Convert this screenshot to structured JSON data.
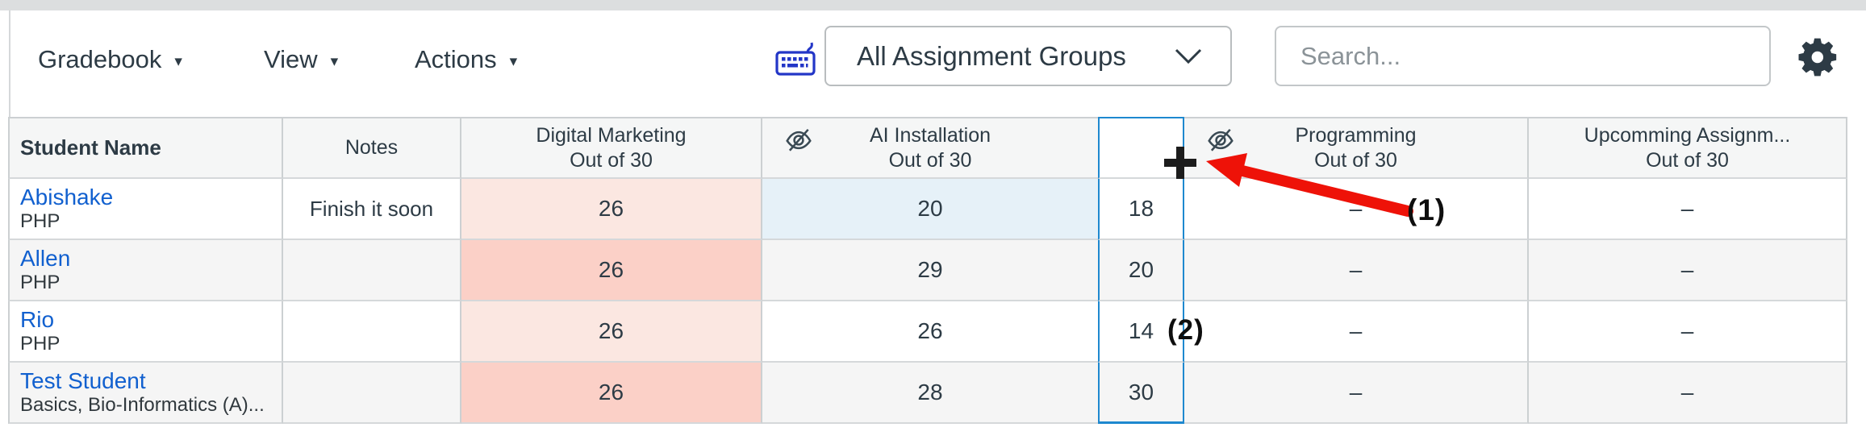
{
  "toolbar": {
    "menus": [
      {
        "label": "Gradebook"
      },
      {
        "label": "View"
      },
      {
        "label": "Actions"
      }
    ],
    "assignment_groups_dropdown": {
      "value": "All Assignment Groups"
    },
    "search": {
      "placeholder": "Search..."
    }
  },
  "icons": {
    "keyboard": "keyboard-shortcuts-icon",
    "gear": "settings-gear-icon",
    "hidden_eye": "hidden-eye-icon",
    "chevron": "chevron-down-icon",
    "plus": "add-column-plus-icon",
    "arrow": "annotation-arrow-icon"
  },
  "table": {
    "columns": [
      {
        "key": "student",
        "label": "Student Name",
        "type": "text"
      },
      {
        "key": "notes",
        "label": "Notes",
        "type": "text"
      },
      {
        "key": "digital_marketing",
        "title": "Digital Marketing",
        "subtitle": "Out of 30",
        "hidden_icon": false
      },
      {
        "key": "ai_installation",
        "title": "AI Installation",
        "subtitle": "Out of 30",
        "hidden_icon": true
      },
      {
        "key": "new_column",
        "title": "",
        "subtitle": "",
        "hidden_icon": false,
        "selected": true
      },
      {
        "key": "programming",
        "title": "Programming",
        "subtitle": "Out of 30",
        "hidden_icon": true
      },
      {
        "key": "upcoming",
        "title": "Upcomming Assignm...",
        "subtitle": "Out of 30",
        "hidden_icon": false
      }
    ],
    "rows": [
      {
        "student": {
          "name": "Abishake",
          "detail": "PHP"
        },
        "notes": "Finish it soon",
        "digital_marketing": "26",
        "ai_installation": "20",
        "new_column": "18",
        "programming": "–",
        "upcoming": "–",
        "highlights": {
          "digital_marketing": "pink_light",
          "ai_installation": "light_blue"
        }
      },
      {
        "student": {
          "name": "Allen",
          "detail": "PHP"
        },
        "notes": "",
        "digital_marketing": "26",
        "ai_installation": "29",
        "new_column": "20",
        "programming": "–",
        "upcoming": "–",
        "highlights": {
          "digital_marketing": "pink_dark"
        }
      },
      {
        "student": {
          "name": "Rio",
          "detail": "PHP"
        },
        "notes": "",
        "digital_marketing": "26",
        "ai_installation": "26",
        "new_column": "14",
        "programming": "–",
        "upcoming": "–",
        "highlights": {
          "digital_marketing": "pink_light"
        }
      },
      {
        "student": {
          "name": "Test Student",
          "detail": "Basics, Bio-Informatics (A)..."
        },
        "notes": "",
        "digital_marketing": "26",
        "ai_installation": "28",
        "new_column": "30",
        "programming": "–",
        "upcoming": "–",
        "highlights": {
          "digital_marketing": "pink_dark"
        }
      }
    ]
  },
  "annotations": {
    "label1": "(1)",
    "label2": "(2)",
    "plus_symbol": "+"
  },
  "colors": {
    "accent_blue": "#1e88cf",
    "link_blue": "#1160cf",
    "pink_light": "#fbe7e1",
    "pink_dark": "#fbd0c7",
    "light_blue": "#e6f1f8",
    "annotation_red": "#ee1208",
    "ink": "#2d3b45"
  }
}
